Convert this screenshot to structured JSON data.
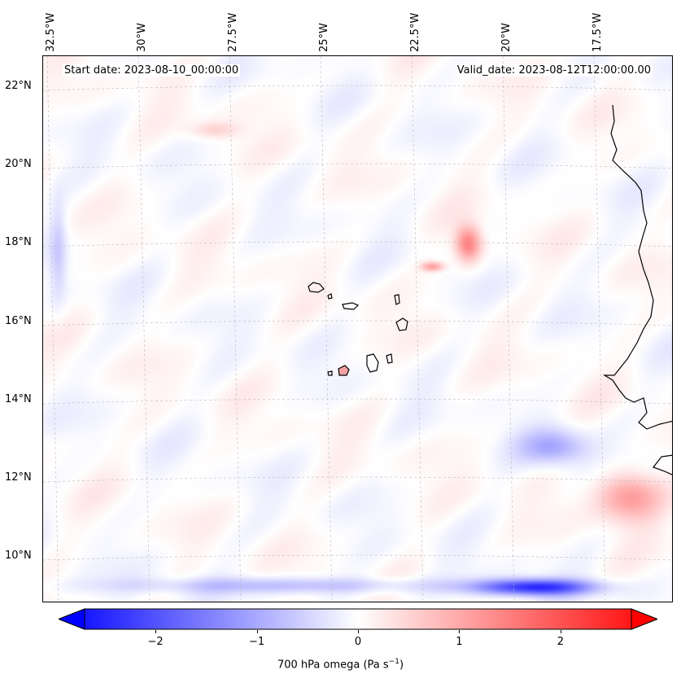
{
  "map": {
    "start_date": "Start date: 2023-08-10_00:00:00",
    "valid_date": "Valid_date: 2023-08-12T12:00:00.00",
    "lon_labels": [
      "32.5°W",
      "30°W",
      "27.5°W",
      "25°W",
      "22.5°W",
      "20°W",
      "17.5°W"
    ],
    "lat_labels": [
      "22°N",
      "20°N",
      "18°N",
      "16°N",
      "14°N",
      "12°N",
      "10°N"
    ],
    "gridlines": "dashed",
    "colormap": "bwr",
    "colors": {
      "negative": "#0000ff",
      "zero": "#ffffff",
      "positive": "#ff0000",
      "coast": "#000000"
    }
  },
  "colorbar": {
    "ticks": [
      "−2",
      "−1",
      "0",
      "1",
      "2"
    ],
    "range": [
      -2.7,
      2.7
    ],
    "label_prefix": "700 hPa omega (Pa s",
    "label_exp": "−1",
    "label_suffix": ")"
  }
}
